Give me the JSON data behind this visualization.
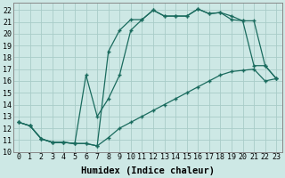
{
  "xlabel": "Humidex (Indice chaleur)",
  "background_color": "#cde8e5",
  "grid_color": "#b0d4d0",
  "line_color": "#1a6b5e",
  "xlim": [
    -0.5,
    23.5
  ],
  "ylim": [
    10.0,
    22.6
  ],
  "xticks": [
    0,
    1,
    2,
    3,
    4,
    5,
    6,
    7,
    8,
    9,
    10,
    11,
    12,
    13,
    14,
    15,
    16,
    17,
    18,
    19,
    20,
    21,
    22,
    23
  ],
  "yticks": [
    10,
    11,
    12,
    13,
    14,
    15,
    16,
    17,
    18,
    19,
    20,
    21,
    22
  ],
  "line1_x": [
    0,
    1,
    2,
    3,
    4,
    5,
    6,
    7,
    8,
    9,
    10,
    11,
    12,
    13,
    14,
    15,
    16,
    17,
    18,
    19,
    20,
    21,
    22,
    23
  ],
  "line1_y": [
    12.5,
    12.2,
    11.1,
    10.8,
    10.8,
    10.7,
    10.7,
    10.5,
    11.2,
    12.0,
    12.5,
    13.0,
    13.5,
    14.0,
    14.5,
    15.0,
    15.5,
    16.0,
    16.5,
    16.8,
    16.9,
    17.0,
    16.0,
    16.2
  ],
  "line2_x": [
    0,
    1,
    2,
    3,
    4,
    5,
    6,
    7,
    8,
    9,
    10,
    11,
    12,
    13,
    14,
    15,
    16,
    17,
    18,
    19,
    20,
    21,
    22,
    23
  ],
  "line2_y": [
    12.5,
    12.2,
    11.1,
    10.8,
    10.8,
    10.7,
    10.7,
    10.5,
    18.5,
    20.3,
    21.2,
    21.2,
    22.0,
    21.5,
    21.5,
    21.5,
    22.1,
    21.7,
    21.8,
    21.2,
    21.1,
    17.3,
    17.3,
    16.2
  ],
  "line3_x": [
    0,
    1,
    2,
    3,
    4,
    5,
    6,
    7,
    8,
    9,
    10,
    11,
    12,
    13,
    14,
    15,
    16,
    17,
    18,
    19,
    20,
    21,
    22,
    23
  ],
  "line3_y": [
    12.5,
    12.2,
    11.1,
    10.8,
    10.8,
    10.7,
    16.5,
    13.0,
    14.5,
    16.5,
    20.3,
    21.2,
    22.0,
    21.5,
    21.5,
    21.5,
    22.1,
    21.7,
    21.8,
    21.5,
    21.1,
    21.1,
    17.3,
    16.2
  ],
  "font_family": "monospace",
  "tick_fontsize": 6.0,
  "xlabel_fontsize": 7.5
}
